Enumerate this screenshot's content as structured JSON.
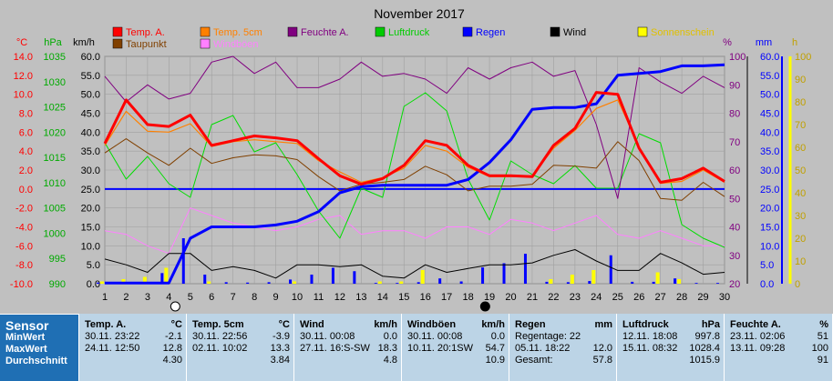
{
  "chart_data": {
    "type": "line",
    "title": "November 2017",
    "x": [
      1,
      2,
      3,
      4,
      5,
      6,
      7,
      8,
      9,
      10,
      11,
      12,
      13,
      14,
      15,
      16,
      17,
      18,
      19,
      20,
      21,
      22,
      23,
      24,
      25,
      26,
      27,
      28,
      29,
      30
    ],
    "axes": {
      "temp": {
        "unit": "°C",
        "ticks": [
          "14.0",
          "12.0",
          "10.0",
          "8.0",
          "6.0",
          "4.0",
          "2.0",
          "0.0",
          "-2.0",
          "-4.0",
          "-6.0",
          "-8.0",
          "-10.0"
        ],
        "ylim": [
          -10,
          14
        ]
      },
      "pressure": {
        "unit": "hPa",
        "ticks": [
          "1035",
          "1030",
          "1025",
          "1020",
          "1015",
          "1010",
          "1005",
          "1000",
          "995",
          "990"
        ],
        "ylim": [
          990,
          1040
        ]
      },
      "wind": {
        "unit": "km/h",
        "ticks": [
          "60.0",
          "55.0",
          "50.0",
          "45.0",
          "40.0",
          "35.0",
          "30.0",
          "25.0",
          "20.0",
          "15.0",
          "10.0",
          "5.0",
          "0.0"
        ],
        "ylim": [
          0,
          60
        ]
      },
      "humidity": {
        "unit": "%",
        "ticks": [
          "100",
          "90",
          "80",
          "70",
          "60",
          "50",
          "40",
          "30",
          "20"
        ],
        "ylim": [
          20,
          100
        ]
      },
      "rain": {
        "unit": "mm",
        "ticks": [
          "60.0",
          "55.0",
          "50.0",
          "45.0",
          "40.0",
          "35.0",
          "30.0",
          "25.0",
          "20.0",
          "15.0",
          "10.0",
          "5.0",
          "0.0"
        ],
        "ylim": [
          0,
          60
        ]
      },
      "sun": {
        "unit": "h",
        "ticks": [
          "100",
          "90",
          "80",
          "70",
          "60",
          "50",
          "40",
          "30",
          "20",
          "10",
          "0"
        ],
        "ylim": [
          0,
          100
        ]
      }
    },
    "legend": [
      {
        "name": "Temp. A.",
        "color": "#ff0000"
      },
      {
        "name": "Temp. 5cm",
        "color": "#ff8000"
      },
      {
        "name": "Feuchte A.",
        "color": "#800080"
      },
      {
        "name": "Luftdruck",
        "color": "#00cc00"
      },
      {
        "name": "Regen",
        "color": "#0000ff"
      },
      {
        "name": "Wind",
        "color": "#000000"
      },
      {
        "name": "Sonnenschein",
        "color": "#ffff00"
      },
      {
        "name": "Taupunkt",
        "color": "#804000"
      },
      {
        "name": "Windböen",
        "color": "#ff80ff"
      }
    ],
    "series": [
      {
        "name": "Temp. A.",
        "axis": "temp",
        "values": [
          4.8,
          9.4,
          6.8,
          6.6,
          7.8,
          4.6,
          5.1,
          5.6,
          5.4,
          5.1,
          3.2,
          1.4,
          0.5,
          1.1,
          2.5,
          5.1,
          4.6,
          2.5,
          1.4,
          1.4,
          1.3,
          4.6,
          6.4,
          10.2,
          10.0,
          4.3,
          0.7,
          1.1,
          2.2,
          0.8
        ]
      },
      {
        "name": "Temp. 5cm",
        "axis": "temp",
        "values": [
          4.6,
          8.2,
          6.1,
          6.0,
          6.9,
          4.5,
          5.0,
          5.2,
          5.0,
          4.8,
          3.0,
          1.8,
          0.7,
          1.2,
          2.2,
          4.6,
          4.0,
          2.3,
          1.3,
          1.3,
          1.4,
          4.3,
          6.2,
          8.5,
          9.4,
          4.5,
          0.6,
          0.8,
          2.0,
          0.7
        ]
      },
      {
        "name": "Taupunkt",
        "axis": "temp",
        "values": [
          3.8,
          5.3,
          3.8,
          2.5,
          4.3,
          2.7,
          3.3,
          3.6,
          3.5,
          3.1,
          1.3,
          -0.2,
          0.5,
          0.7,
          1.0,
          2.4,
          1.5,
          -0.2,
          0.3,
          0.3,
          0.5,
          2.5,
          2.4,
          2.2,
          5.0,
          3.0,
          -1.0,
          -1.2,
          0.7,
          -0.8
        ]
      },
      {
        "name": "Feuchte A.",
        "axis": "humidity",
        "values": [
          93,
          84,
          90,
          85,
          87,
          98,
          100,
          94,
          98,
          89,
          89,
          92,
          98,
          93,
          94,
          92,
          87,
          96,
          92,
          96,
          98,
          93,
          95,
          76,
          50,
          96,
          91,
          87,
          93,
          89
        ]
      },
      {
        "name": "Luftdruck",
        "axis": "pressure",
        "values": [
          1021,
          1013,
          1018,
          1012,
          1009,
          1025,
          1027,
          1019,
          1021,
          1014,
          1006,
          1000,
          1011,
          1009,
          1029,
          1032,
          1028,
          1013,
          1004,
          1017,
          1014,
          1012,
          1016,
          1011,
          1011,
          1023,
          1021,
          1003,
          1000,
          998
        ]
      },
      {
        "name": "Wind",
        "axis": "wind",
        "values": [
          6.5,
          5.0,
          3.0,
          8.0,
          8.0,
          3.5,
          4.5,
          3.5,
          1.5,
          5.0,
          5.0,
          4.5,
          5.0,
          2.0,
          1.5,
          5.0,
          3.0,
          4.0,
          5.0,
          5.0,
          5.5,
          7.5,
          9.0,
          6.0,
          3.5,
          3.5,
          8.0,
          5.5,
          2.5,
          3.0
        ]
      },
      {
        "name": "Windböen",
        "axis": "wind",
        "values": [
          14,
          13,
          10,
          8,
          20,
          18,
          16,
          15,
          14,
          15,
          17,
          18,
          13,
          14,
          14,
          12,
          15,
          15,
          13,
          17,
          16,
          14,
          16,
          18,
          13,
          12,
          14,
          12,
          10,
          10
        ]
      },
      {
        "name": "Regen",
        "axis": "rain",
        "values": [
          0.2,
          0.2,
          0.2,
          0.2,
          12.0,
          15.0,
          15.0,
          15.0,
          15.5,
          16.5,
          19.0,
          24.0,
          25.6,
          26.0,
          26.0,
          26.0,
          26.0,
          27.5,
          32.0,
          38.0,
          46.0,
          46.5,
          46.5,
          47.5,
          55.0,
          55.5,
          56.0,
          57.5,
          57.5,
          57.8
        ]
      }
    ],
    "rain_bars": [
      0.3,
      0.2,
      0.3,
      2.8,
      12.0,
      2.4,
      0.4,
      0.3,
      0.4,
      1.1,
      2.4,
      4.2,
      3.3,
      0.2,
      0.2,
      0.4,
      1.4,
      0.6,
      4.3,
      5.4,
      7.9,
      0.5,
      0.4,
      0.7,
      7.5,
      0.5,
      0.5,
      1.4,
      0.2,
      0.2
    ],
    "sun_bars": [
      1,
      2,
      3,
      7,
      0,
      1,
      0,
      0,
      0,
      1,
      0,
      0,
      0,
      1,
      1,
      6,
      0,
      0,
      0,
      0,
      0,
      2,
      4,
      6,
      0,
      0,
      5,
      2,
      0,
      0
    ],
    "markers": [
      {
        "day": 4,
        "symbol": "full-moon"
      },
      {
        "day": 18.5,
        "symbol": "new-moon"
      }
    ]
  },
  "stats": {
    "labels": {
      "sensor": "Sensor",
      "min": "MinWert",
      "max": "MaxWert",
      "avg": "Durchschnitt"
    },
    "columns": [
      {
        "name": "Temp. A.",
        "unit": "°C",
        "min_date": "30.11.",
        "min_time": "23:22",
        "min": "-2.1",
        "max_date": "24.11.",
        "max_time": "12:50",
        "max": "12.8",
        "avg": "4.30"
      },
      {
        "name": "Temp. 5cm",
        "unit": "°C",
        "min_date": "30.11.",
        "min_time": "22:56",
        "min": "-3.9",
        "max_date": "02.11.",
        "max_time": "10:02",
        "max": "13.3",
        "avg": "3.84"
      },
      {
        "name": "Wind",
        "unit": "km/h",
        "min_date": "30.11.",
        "min_time": "00:08",
        "min": "0.0",
        "max_date": "27.11.",
        "max_time": "16:S-SW",
        "max": "18.3",
        "avg": "4.8"
      },
      {
        "name": "Windböen",
        "unit": "km/h",
        "min_date": "30.11.",
        "min_time": "00:08",
        "min": "0.0",
        "max_date": "10.11.",
        "max_time": "20:1SW",
        "max": "54.7",
        "avg": "10.9"
      },
      {
        "name": "Regen",
        "unit": "mm",
        "min_date": "Regentage: 22",
        "min_time": "",
        "min": "",
        "max_date": "05.11.",
        "max_time": "18:22",
        "max": "12.0",
        "avg_label": "Gesamt:",
        "avg": "57.8"
      },
      {
        "name": "Luftdruck",
        "unit": "hPa",
        "min_date": "12.11.",
        "min_time": "18:08",
        "min": "997.8",
        "max_date": "15.11.",
        "max_time": "08:32",
        "max": "1028.4",
        "avg": "1015.9"
      },
      {
        "name": "Feuchte A.",
        "unit": "%",
        "min_date": "23.11.",
        "min_time": "02:06",
        "min": "51",
        "max_date": "13.11.",
        "max_time": "09:28",
        "max": "100",
        "avg": "91"
      }
    ]
  }
}
